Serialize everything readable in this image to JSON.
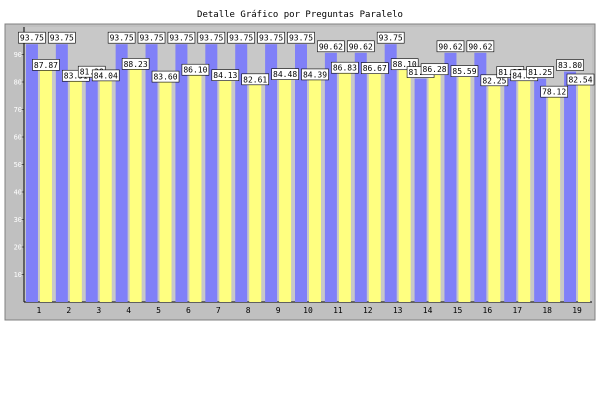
{
  "chart_data": {
    "type": "bar",
    "title": "Detalle Gráfico por Preguntas Paralelo",
    "categories": [
      "1",
      "2",
      "3",
      "4",
      "5",
      "6",
      "7",
      "8",
      "9",
      "10",
      "11",
      "12",
      "13",
      "14",
      "15",
      "16",
      "17",
      "18",
      "19"
    ],
    "series": [
      {
        "values": [
          93.75,
          93.75,
          81.38,
          93.75,
          93.75,
          93.75,
          93.75,
          93.75,
          93.75,
          93.75,
          90.62,
          90.62,
          93.75,
          81.25,
          90.62,
          90.62,
          81.25,
          81.25,
          83.8
        ]
      },
      {
        "values": [
          87.87,
          83.91,
          84.04,
          88.23,
          83.6,
          86.1,
          84.13,
          82.61,
          84.48,
          84.39,
          86.83,
          86.67,
          88.1,
          86.28,
          85.59,
          82.25,
          84.08,
          78.12,
          82.54
        ]
      }
    ],
    "ylim": [
      0,
      100
    ],
    "yticks": [
      10,
      20,
      30,
      40,
      50,
      60,
      70,
      80,
      90
    ],
    "grid": false,
    "colors": {
      "panel": "#c0c0c0",
      "plot_bg": "#c8c8c8",
      "series1": "#8080f8",
      "series2": "#ffff80",
      "axis_text_dim": "#ffffff",
      "label_bg": "#ffffff"
    }
  }
}
